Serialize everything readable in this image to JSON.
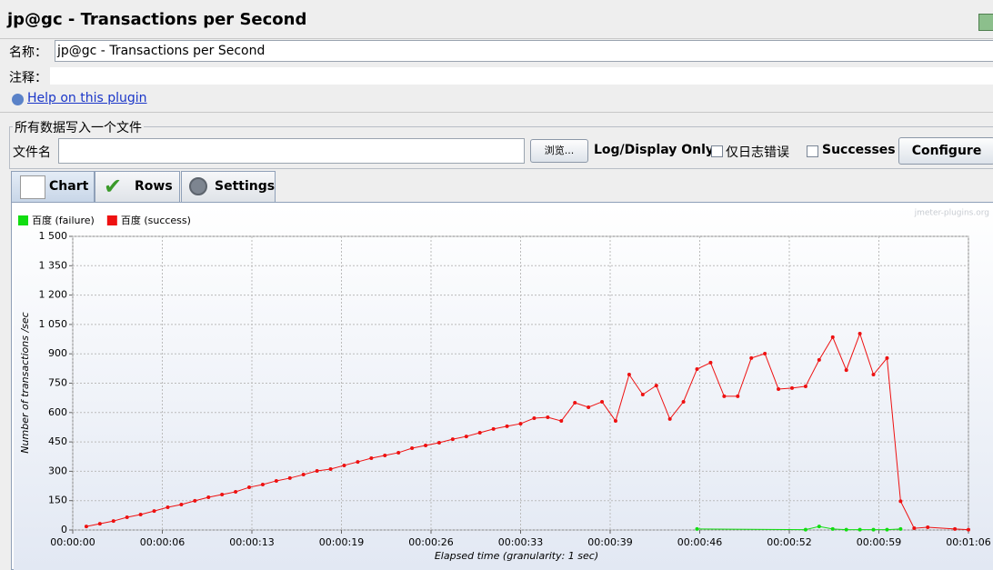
{
  "header": {
    "title": "jp@gc - Transactions per Second"
  },
  "form": {
    "name_label": "名称：",
    "name_value": "jp@gc - Transactions per Second",
    "comment_label": "注释：",
    "help_link": "Help on this plugin"
  },
  "file_panel": {
    "legend": "所有数据写入一个文件",
    "file_label": "文件名",
    "browse_button": "浏览...",
    "log_label": "Log/Display Only:",
    "errors_checkbox": "仅日志错误",
    "successes_checkbox": "Successes",
    "configure_button": "Configure"
  },
  "tabs": [
    "Chart",
    "Rows",
    "Settings"
  ],
  "chart_data": {
    "type": "line",
    "watermark": "jmeter-plugins.org",
    "x_label": "Elapsed time (granularity: 1 sec)",
    "y_label": "Number of transactions /sec",
    "xlim": [
      0,
      66
    ],
    "xticks": [
      {
        "value": 0,
        "label": "00:00:00"
      },
      {
        "value": 6.6,
        "label": "00:00:06"
      },
      {
        "value": 13.2,
        "label": "00:00:13"
      },
      {
        "value": 19.8,
        "label": "00:00:19"
      },
      {
        "value": 26.4,
        "label": "00:00:26"
      },
      {
        "value": 33,
        "label": "00:00:33"
      },
      {
        "value": 39.6,
        "label": "00:00:39"
      },
      {
        "value": 46.2,
        "label": "00:00:46"
      },
      {
        "value": 52.8,
        "label": "00:00:52"
      },
      {
        "value": 59.4,
        "label": "00:00:59"
      },
      {
        "value": 66,
        "label": "00:01:06"
      }
    ],
    "ylim": [
      0,
      1500
    ],
    "yticks": [
      0,
      150,
      300,
      450,
      600,
      750,
      900,
      {
        "value": 1050,
        "label": "1 050"
      },
      {
        "value": 1200,
        "label": "1 200"
      },
      {
        "value": 1350,
        "label": "1 350"
      },
      {
        "value": 1500,
        "label": "1 500"
      }
    ],
    "grid": true,
    "legend": "top-left",
    "series": [
      {
        "name": "百度 (failure)",
        "color": "#11dd11",
        "x": [
          46,
          54,
          55,
          56,
          57,
          58,
          59,
          60,
          61
        ],
        "values": [
          5,
          2,
          18,
          5,
          2,
          2,
          2,
          2,
          5
        ]
      },
      {
        "name": "百度 (success)",
        "color": "#ee1111",
        "x": [
          1,
          2,
          3,
          4,
          5,
          6,
          7,
          8,
          9,
          10,
          11,
          12,
          13,
          14,
          15,
          16,
          17,
          18,
          19,
          20,
          21,
          22,
          23,
          24,
          25,
          26,
          27,
          28,
          29,
          30,
          31,
          32,
          33,
          34,
          35,
          36,
          37,
          38,
          39,
          40,
          41,
          42,
          43,
          44,
          45,
          46,
          47,
          48,
          49,
          50,
          51,
          52,
          53,
          54,
          55,
          56,
          57,
          58,
          59,
          60,
          61,
          62,
          63,
          65,
          66
        ],
        "values": [
          18,
          32,
          46,
          65,
          79,
          97,
          116,
          130,
          149,
          167,
          181,
          195,
          218,
          232,
          251,
          265,
          283,
          302,
          311,
          330,
          348,
          367,
          381,
          395,
          418,
          432,
          446,
          464,
          478,
          497,
          516,
          530,
          543,
          571,
          576,
          557,
          650,
          627,
          655,
          557,
          794,
          692,
          738,
          567,
          655,
          822,
          855,
          683,
          683,
          878,
          901,
          720,
          725,
          734,
          869,
          985,
          817,
          1003,
          794,
          878,
          147,
          9,
          14,
          5,
          2
        ]
      }
    ]
  }
}
